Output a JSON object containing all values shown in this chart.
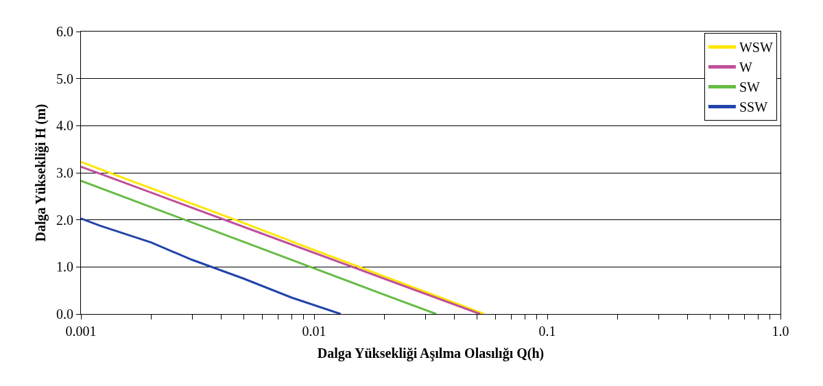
{
  "chart_data": {
    "type": "line",
    "xlabel": "Dalga Yüksekliği Aşılma Olasılığı Q(h)",
    "ylabel": "Dalga Yüksekliği H (m)",
    "log": "x",
    "grid": "y",
    "legend": "top right",
    "marker": "none",
    "line_style": "solid",
    "xlim": [
      0.001,
      1.0
    ],
    "ylim": [
      0,
      6
    ],
    "xticks": [
      {
        "value": 0.001,
        "label": "0.001"
      },
      {
        "value": 0.002,
        "label": null
      },
      {
        "value": 0.003,
        "label": null
      },
      {
        "value": 0.004,
        "label": null
      },
      {
        "value": 0.005,
        "label": null
      },
      {
        "value": 0.006,
        "label": null
      },
      {
        "value": 0.007,
        "label": null
      },
      {
        "value": 0.008,
        "label": null
      },
      {
        "value": 0.009,
        "label": null
      },
      {
        "value": 0.01,
        "label": "0.01"
      },
      {
        "value": 0.02,
        "label": null
      },
      {
        "value": 0.03,
        "label": null
      },
      {
        "value": 0.04,
        "label": null
      },
      {
        "value": 0.05,
        "label": null
      },
      {
        "value": 0.06,
        "label": null
      },
      {
        "value": 0.07,
        "label": null
      },
      {
        "value": 0.08,
        "label": null
      },
      {
        "value": 0.09,
        "label": null
      },
      {
        "value": 0.1,
        "label": "0.1"
      },
      {
        "value": 0.2,
        "label": null
      },
      {
        "value": 0.3,
        "label": null
      },
      {
        "value": 0.4,
        "label": null
      },
      {
        "value": 0.5,
        "label": null
      },
      {
        "value": 0.6,
        "label": null
      },
      {
        "value": 0.7,
        "label": null
      },
      {
        "value": 0.8,
        "label": null
      },
      {
        "value": 0.9,
        "label": null
      },
      {
        "value": 1.0,
        "label": "1.0"
      }
    ],
    "yticks": [
      {
        "value": 0,
        "label": "0.0"
      },
      {
        "value": 1,
        "label": "1.0"
      },
      {
        "value": 2,
        "label": "2.0"
      },
      {
        "value": 3,
        "label": "3.0"
      },
      {
        "value": 4,
        "label": "4.0"
      },
      {
        "value": 5,
        "label": "5.0"
      },
      {
        "value": 6,
        "label": "6.0"
      }
    ],
    "series": [
      {
        "name": "WSW",
        "color": "#ffe600",
        "x": [
          0.001,
          0.002,
          0.005,
          0.01,
          0.02,
          0.0536
        ],
        "values": [
          3.23,
          2.67,
          1.93,
          1.36,
          0.8,
          0
        ]
      },
      {
        "name": "W",
        "color": "#c0509a",
        "x": [
          0.001,
          0.002,
          0.005,
          0.01,
          0.02,
          0.0515
        ],
        "values": [
          3.13,
          2.58,
          1.85,
          1.3,
          0.75,
          0
        ]
      },
      {
        "name": "SW",
        "color": "#66bb44",
        "x": [
          0.001,
          0.002,
          0.005,
          0.01,
          0.02,
          0.0334
        ],
        "values": [
          2.83,
          2.27,
          1.53,
          0.97,
          0.41,
          0
        ]
      },
      {
        "name": "SSW",
        "color": "#2244aa",
        "x": [
          0.001,
          0.0012,
          0.002,
          0.003,
          0.005,
          0.008,
          0.013
        ],
        "values": [
          2.03,
          1.88,
          1.52,
          1.15,
          0.75,
          0.35,
          0
        ]
      }
    ]
  }
}
